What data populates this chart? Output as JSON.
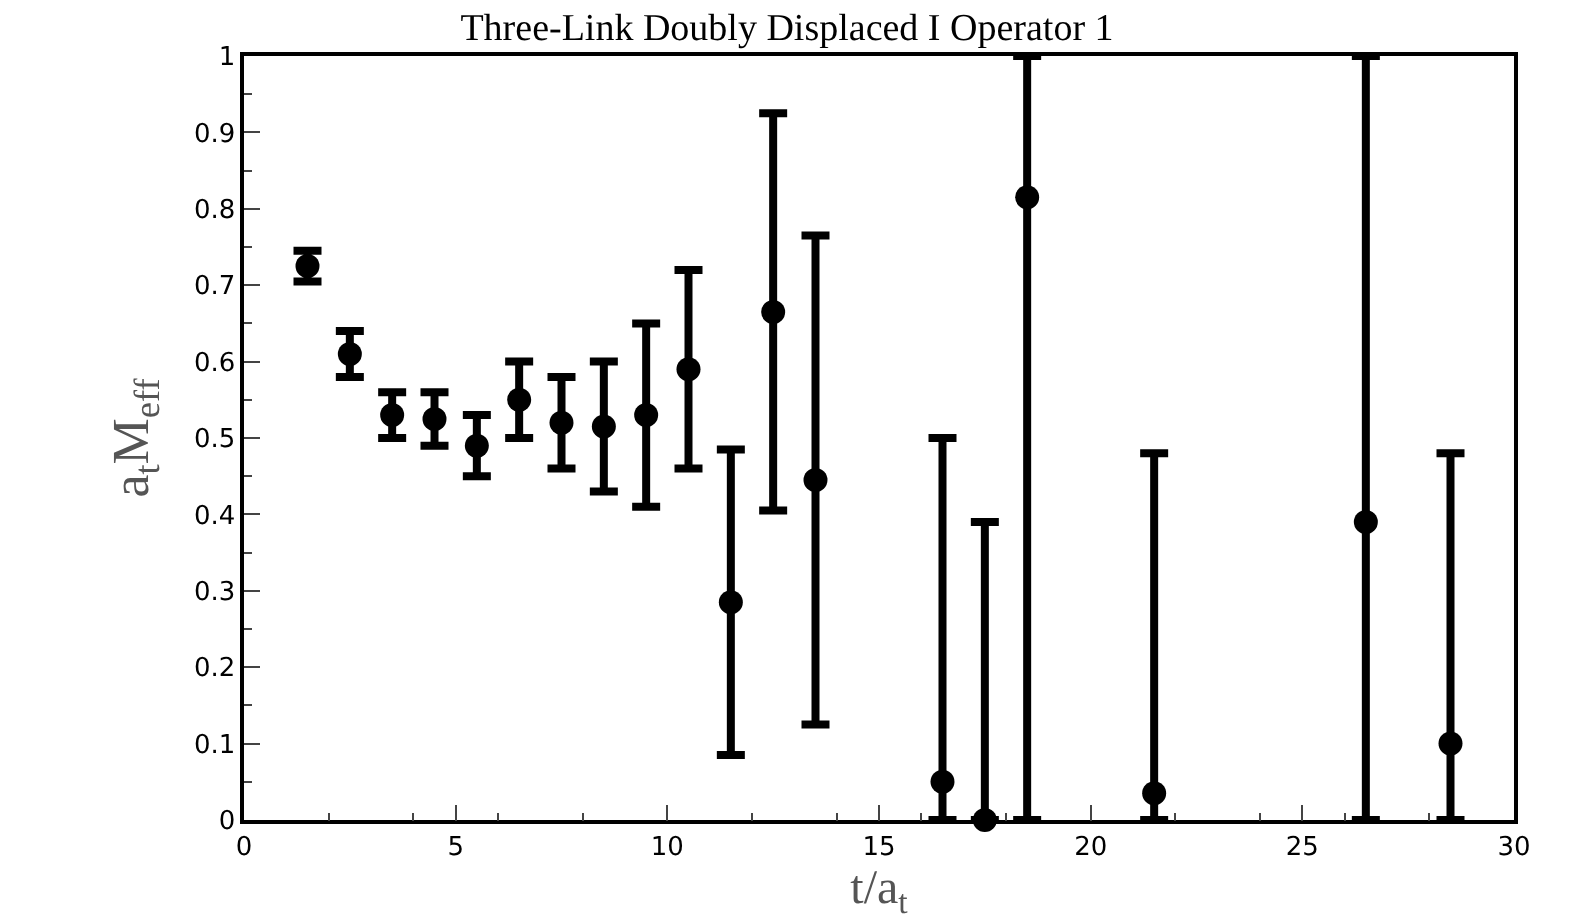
{
  "chart_data": {
    "type": "scatter",
    "title": "Three-Link Doubly Displaced I Operator 1",
    "xlabel": "t/a$_{t}$",
    "ylabel": "a$_{t}$M$_{eff}$",
    "x": [
      1.5,
      2.5,
      3.5,
      4.5,
      5.5,
      6.5,
      7.5,
      8.5,
      9.5,
      10.5,
      11.5,
      12.5,
      13.5,
      16.5,
      17.5,
      18.5,
      21.5,
      26.5,
      28.5
    ],
    "values": [
      0.725,
      0.61,
      0.53,
      0.525,
      0.49,
      0.55,
      0.52,
      0.515,
      0.53,
      0.59,
      0.285,
      0.665,
      0.445,
      0.05,
      0.0,
      0.815,
      0.035,
      0.39,
      0.1
    ],
    "errors": [
      0.02,
      0.03,
      0.03,
      0.035,
      0.04,
      0.05,
      0.06,
      0.085,
      0.12,
      0.13,
      0.2,
      0.26,
      0.32,
      [
        0,
        0.5
      ],
      [
        0,
        0.39
      ],
      [
        0,
        1
      ],
      [
        0,
        0.48
      ],
      [
        0,
        1
      ],
      [
        0,
        0.48
      ]
    ],
    "color": "#000000",
    "marker": "circle",
    "xlim": [
      0,
      30
    ],
    "xticks": [
      0,
      5,
      10,
      15,
      20,
      25,
      30
    ],
    "ylim": [
      0,
      1
    ],
    "yticks": [
      0,
      0.1,
      0.2,
      0.3,
      0.4,
      0.5,
      0.6,
      0.7,
      0.8,
      0.9,
      1
    ]
  }
}
